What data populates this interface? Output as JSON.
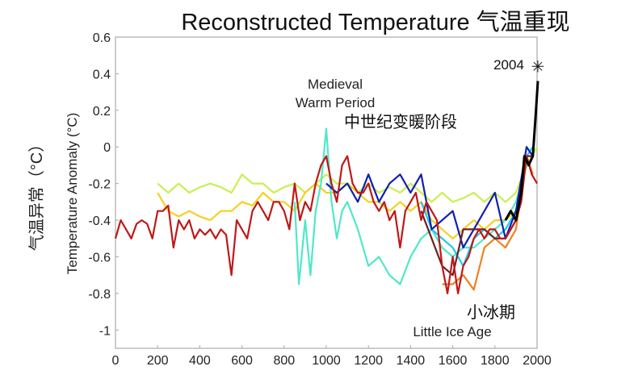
{
  "chart_data": {
    "type": "line",
    "title": "Reconstructed Temperature 气温重现",
    "ylabel": "Temperature Anomaly (°C)",
    "ylabel_cn": "气温异常（°C）",
    "xlabel": "",
    "xlim": [
      0,
      2000
    ],
    "ylim": [
      -1.1,
      0.6
    ],
    "xticks": [
      0,
      200,
      400,
      600,
      800,
      1000,
      1200,
      1400,
      1600,
      1800,
      2000
    ],
    "yticks": [
      0.6,
      0.4,
      0.2,
      0,
      -0.2,
      -0.4,
      -0.6,
      -0.8,
      -1
    ],
    "ytick_labels": [
      "0.6",
      "0.4",
      "0.2",
      "0",
      "-0.2",
      "-0.4",
      "-0.6",
      "-0.8",
      "-1"
    ],
    "annotations": {
      "mwp_en_1": "Medieval",
      "mwp_en_2": "Warm Period",
      "mwp_cn": "中世纪变暖阶段",
      "lia_cn": "小冰期",
      "lia_en": "Little Ice Age",
      "year_2004": "2004"
    },
    "marker_2004": {
      "x": 2004,
      "y": 0.44
    },
    "series": [
      {
        "name": "yellow-green",
        "color": "#c8f050",
        "x": [
          200,
          250,
          300,
          350,
          400,
          450,
          500,
          550,
          600,
          650,
          700,
          750,
          800,
          850,
          900,
          950,
          1000,
          1050,
          1100,
          1150,
          1200,
          1250,
          1300,
          1350,
          1400,
          1450,
          1500,
          1550,
          1600,
          1650,
          1700,
          1750,
          1800,
          1850,
          1900,
          1950,
          2000
        ],
        "y": [
          -0.2,
          -0.25,
          -0.2,
          -0.25,
          -0.22,
          -0.2,
          -0.22,
          -0.25,
          -0.15,
          -0.2,
          -0.2,
          -0.25,
          -0.22,
          -0.2,
          -0.25,
          -0.2,
          -0.15,
          -0.2,
          -0.2,
          -0.25,
          -0.2,
          -0.25,
          -0.22,
          -0.25,
          -0.2,
          -0.25,
          -0.3,
          -0.25,
          -0.3,
          -0.28,
          -0.25,
          -0.3,
          -0.25,
          -0.3,
          -0.25,
          -0.1,
          0
        ]
      },
      {
        "name": "yellow",
        "color": "#f5d020",
        "x": [
          200,
          250,
          300,
          350,
          400,
          450,
          500,
          550,
          600,
          650,
          700,
          750,
          800,
          850,
          900,
          950,
          1000,
          1050,
          1100,
          1150,
          1200,
          1250,
          1300,
          1350,
          1400,
          1450,
          1500,
          1550,
          1600,
          1650,
          1700,
          1750,
          1800,
          1850,
          1900,
          1950
        ],
        "y": [
          -0.25,
          -0.35,
          -0.38,
          -0.35,
          -0.38,
          -0.4,
          -0.35,
          -0.35,
          -0.3,
          -0.32,
          -0.25,
          -0.3,
          -0.3,
          -0.35,
          -0.25,
          -0.2,
          -0.25,
          -0.25,
          -0.2,
          -0.25,
          -0.3,
          -0.3,
          -0.35,
          -0.3,
          -0.35,
          -0.3,
          -0.4,
          -0.45,
          -0.5,
          -0.45,
          -0.4,
          -0.45,
          -0.4,
          -0.4,
          -0.35,
          -0.1
        ]
      },
      {
        "name": "turquoise",
        "color": "#50e8c8",
        "x": [
          850,
          870,
          900,
          925,
          950,
          975,
          1000,
          1025,
          1050,
          1075,
          1100,
          1150,
          1200,
          1250,
          1300,
          1350,
          1400,
          1450,
          1500,
          1550,
          1600,
          1650,
          1700,
          1750,
          1800,
          1850,
          1900,
          1950
        ],
        "y": [
          -0.3,
          -0.75,
          -0.4,
          -0.7,
          -0.35,
          -0.2,
          0.1,
          -0.3,
          -0.5,
          -0.35,
          -0.3,
          -0.45,
          -0.65,
          -0.6,
          -0.7,
          -0.75,
          -0.6,
          -0.5,
          -0.45,
          -0.55,
          -0.6,
          -0.55,
          -0.55,
          -0.5,
          -0.45,
          -0.4,
          -0.3,
          -0.1
        ]
      },
      {
        "name": "light-blue",
        "color": "#20c8f0",
        "x": [
          1450,
          1500,
          1550,
          1600,
          1650,
          1700,
          1750,
          1800,
          1850,
          1900,
          1950,
          1980
        ],
        "y": [
          -0.3,
          -0.45,
          -0.5,
          -0.55,
          -0.65,
          -0.5,
          -0.45,
          -0.5,
          -0.45,
          -0.35,
          -0.05,
          0
        ]
      },
      {
        "name": "blue",
        "color": "#1020b0",
        "x": [
          1000,
          1050,
          1100,
          1150,
          1200,
          1250,
          1300,
          1350,
          1400,
          1450,
          1500,
          1550,
          1600,
          1650,
          1700,
          1750,
          1800,
          1850,
          1900,
          1950,
          1980
        ],
        "y": [
          -0.2,
          -0.25,
          -0.2,
          -0.3,
          -0.15,
          -0.3,
          -0.2,
          -0.15,
          -0.25,
          -0.15,
          -0.45,
          -0.4,
          -0.35,
          -0.55,
          -0.45,
          -0.35,
          -0.25,
          -0.5,
          -0.35,
          0,
          -0.05
        ]
      },
      {
        "name": "orange",
        "color": "#f08020",
        "x": [
          1550,
          1600,
          1650,
          1700,
          1750,
          1800,
          1850,
          1900,
          1950,
          1980
        ],
        "y": [
          -0.75,
          -0.75,
          -0.7,
          -0.78,
          -0.55,
          -0.5,
          -0.55,
          -0.45,
          -0.05,
          -0.15
        ]
      },
      {
        "name": "brown",
        "color": "#702020",
        "x": [
          1450,
          1500,
          1550,
          1600,
          1650,
          1700,
          1750,
          1800,
          1850,
          1900,
          1950,
          1980
        ],
        "y": [
          -0.35,
          -0.5,
          -0.65,
          -0.7,
          -0.45,
          -0.45,
          -0.45,
          -0.5,
          -0.5,
          -0.4,
          -0.05,
          -0.05
        ]
      },
      {
        "name": "dark-red",
        "color": "#c01818",
        "x": [
          0,
          25,
          50,
          75,
          100,
          125,
          150,
          175,
          200,
          225,
          250,
          275,
          300,
          325,
          350,
          375,
          400,
          425,
          450,
          475,
          500,
          525,
          550,
          575,
          600,
          625,
          650,
          675,
          700,
          725,
          750,
          775,
          800,
          825,
          850,
          875,
          900,
          925,
          950,
          975,
          1000,
          1025,
          1050,
          1075,
          1100,
          1125,
          1150,
          1175,
          1200,
          1225,
          1250,
          1275,
          1300,
          1325,
          1350,
          1375,
          1400,
          1425,
          1450,
          1475,
          1500,
          1525,
          1550,
          1575,
          1600,
          1625,
          1650,
          1675,
          1700,
          1725,
          1750,
          1775,
          1800,
          1825,
          1850,
          1875,
          1900,
          1925,
          1950,
          1975,
          2000
        ],
        "y": [
          -0.5,
          -0.4,
          -0.45,
          -0.5,
          -0.42,
          -0.4,
          -0.42,
          -0.5,
          -0.35,
          -0.35,
          -0.32,
          -0.55,
          -0.4,
          -0.45,
          -0.4,
          -0.5,
          -0.45,
          -0.48,
          -0.45,
          -0.5,
          -0.45,
          -0.48,
          -0.7,
          -0.4,
          -0.45,
          -0.5,
          -0.35,
          -0.3,
          -0.35,
          -0.4,
          -0.3,
          -0.3,
          -0.35,
          -0.45,
          -0.2,
          -0.4,
          -0.3,
          -0.35,
          -0.2,
          -0.1,
          -0.05,
          -0.2,
          -0.3,
          -0.1,
          -0.05,
          -0.2,
          -0.25,
          -0.25,
          -0.2,
          -0.3,
          -0.35,
          -0.3,
          -0.4,
          -0.35,
          -0.55,
          -0.35,
          -0.3,
          -0.25,
          -0.4,
          -0.3,
          -0.35,
          -0.4,
          -0.65,
          -0.8,
          -0.6,
          -0.8,
          -0.65,
          -0.6,
          -0.5,
          -0.45,
          -0.5,
          -0.45,
          -0.45,
          -0.5,
          -0.5,
          -0.45,
          -0.4,
          -0.3,
          -0.05,
          -0.15,
          -0.2
        ]
      },
      {
        "name": "instrumental",
        "color": "#000000",
        "x": [
          1850,
          1875,
          1900,
          1925,
          1940,
          1960,
          1980,
          1995,
          2004
        ],
        "y": [
          -0.4,
          -0.35,
          -0.4,
          -0.25,
          -0.05,
          -0.1,
          -0.05,
          0.2,
          0.36
        ]
      }
    ]
  }
}
